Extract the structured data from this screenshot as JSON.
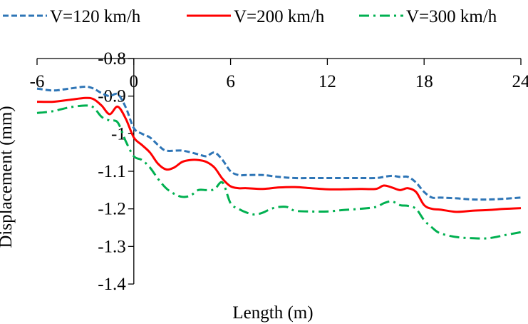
{
  "chart_data": {
    "type": "line",
    "title": "",
    "xlabel": "Length (m)",
    "ylabel": "Displacement (mm)",
    "xlim": [
      -6,
      24
    ],
    "ylim": [
      -1.4,
      -0.8
    ],
    "xticks": [
      -6,
      0,
      6,
      12,
      18,
      24
    ],
    "yticks": [
      -0.8,
      -0.9,
      -1,
      -1.1,
      -1.2,
      -1.3,
      -1.4
    ],
    "xtick_labels": [
      "-6",
      "0",
      "6",
      "12",
      "18",
      "24"
    ],
    "ytick_labels": [
      "-0.8",
      "-0.9",
      "-1",
      "-1.1",
      "-1.2",
      "-1.3",
      "-1.4"
    ],
    "x_axis_position": "top (crosses at y = -0.8)",
    "y_axis_position": "crosses at x = 0",
    "grid": false,
    "legend_position": "top",
    "series": [
      {
        "name": "V=120 km/h",
        "color": "#2e75b6",
        "style": "dashed",
        "x": [
          -6,
          -5,
          -4,
          -3,
          -2.5,
          -2,
          -1.5,
          -1,
          -0.5,
          0,
          0.5,
          1,
          1.5,
          2,
          3,
          4,
          4.5,
          5,
          5.5,
          6,
          6.5,
          7,
          8,
          9,
          10,
          11,
          12,
          13,
          14,
          15,
          15.5,
          16,
          16.5,
          17,
          17.5,
          18,
          18.5,
          19,
          20,
          21,
          22,
          23,
          24
        ],
        "y": [
          -0.88,
          -0.885,
          -0.88,
          -0.875,
          -0.88,
          -0.892,
          -0.9,
          -0.895,
          -0.93,
          -0.985,
          -1.0,
          -1.01,
          -1.03,
          -1.045,
          -1.045,
          -1.055,
          -1.06,
          -1.05,
          -1.07,
          -1.1,
          -1.11,
          -1.11,
          -1.11,
          -1.115,
          -1.118,
          -1.118,
          -1.118,
          -1.118,
          -1.118,
          -1.118,
          -1.115,
          -1.112,
          -1.115,
          -1.115,
          -1.13,
          -1.155,
          -1.17,
          -1.17,
          -1.172,
          -1.175,
          -1.175,
          -1.173,
          -1.17
        ]
      },
      {
        "name": "V=200 km/h",
        "color": "#ff0000",
        "style": "solid",
        "x": [
          -6,
          -5,
          -4,
          -3,
          -2.5,
          -2,
          -1.5,
          -1,
          -0.5,
          0,
          0.5,
          1,
          1.5,
          2,
          2.5,
          3,
          3.5,
          4,
          4.5,
          5,
          5.5,
          6,
          6.5,
          7,
          8,
          9,
          10,
          11,
          12,
          13,
          14,
          15,
          15.5,
          16,
          16.5,
          17,
          17.5,
          18,
          18.5,
          19,
          20,
          21,
          22,
          23,
          24
        ],
        "y": [
          -0.915,
          -0.915,
          -0.91,
          -0.905,
          -0.908,
          -0.925,
          -0.948,
          -0.928,
          -0.96,
          -1.01,
          -1.03,
          -1.05,
          -1.08,
          -1.095,
          -1.09,
          -1.075,
          -1.07,
          -1.07,
          -1.075,
          -1.09,
          -1.12,
          -1.14,
          -1.145,
          -1.145,
          -1.147,
          -1.143,
          -1.142,
          -1.145,
          -1.148,
          -1.148,
          -1.147,
          -1.147,
          -1.138,
          -1.143,
          -1.15,
          -1.145,
          -1.155,
          -1.19,
          -1.2,
          -1.202,
          -1.208,
          -1.205,
          -1.203,
          -1.2,
          -1.198
        ]
      },
      {
        "name": "V=300 km/h",
        "color": "#00b050",
        "style": "dash-dot",
        "x": [
          -6,
          -5,
          -4,
          -3,
          -2.5,
          -2,
          -1.5,
          -1,
          -0.5,
          0,
          0.5,
          1,
          1.5,
          2,
          2.5,
          3,
          3.5,
          4,
          4.5,
          5,
          5.5,
          6,
          6.5,
          7,
          7.5,
          8,
          8.5,
          9,
          9.5,
          10,
          11,
          12,
          13,
          14,
          15,
          15.5,
          16,
          16.5,
          17,
          17.5,
          18,
          18.5,
          19,
          20,
          21,
          22,
          23,
          24
        ],
        "y": [
          -0.945,
          -0.94,
          -0.93,
          -0.925,
          -0.93,
          -0.955,
          -0.965,
          -0.97,
          -1.02,
          -1.06,
          -1.07,
          -1.09,
          -1.12,
          -1.145,
          -1.16,
          -1.168,
          -1.165,
          -1.15,
          -1.15,
          -1.148,
          -1.13,
          -1.185,
          -1.2,
          -1.21,
          -1.215,
          -1.21,
          -1.2,
          -1.195,
          -1.195,
          -1.205,
          -1.207,
          -1.207,
          -1.203,
          -1.2,
          -1.195,
          -1.185,
          -1.18,
          -1.19,
          -1.192,
          -1.2,
          -1.23,
          -1.25,
          -1.265,
          -1.275,
          -1.278,
          -1.278,
          -1.27,
          -1.262
        ]
      }
    ]
  }
}
